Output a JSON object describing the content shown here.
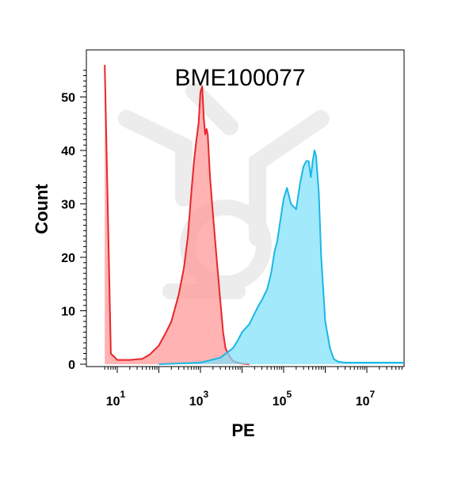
{
  "chart_data": {
    "type": "area",
    "title": "BME100077",
    "xlabel": "PE",
    "ylabel": "Count",
    "xscale": "log",
    "xlim": [
      5,
      1000000000
    ],
    "ylim": [
      0,
      57
    ],
    "x_ticks": [
      {
        "value": 10,
        "base": "10",
        "exp": "1"
      },
      {
        "value": 1000,
        "base": "10",
        "exp": "3"
      },
      {
        "value": 100000,
        "base": "10",
        "exp": "5"
      },
      {
        "value": 10000000,
        "base": "10",
        "exp": "7"
      }
    ],
    "y_ticks": [
      "0",
      "10",
      "20",
      "30",
      "40",
      "50"
    ],
    "y_tick_values": [
      0,
      10,
      20,
      30,
      40,
      50
    ],
    "grid": false,
    "colors": {
      "red_fill": "#ff9a9a",
      "red_line": "#e8262a",
      "blue_fill": "#7ee0fb",
      "blue_line": "#1ab7e6",
      "overlap": "#9eabb8"
    },
    "series": [
      {
        "color": "red",
        "x": [
          5,
          7,
          10,
          20,
          40,
          60,
          100,
          150,
          200,
          300,
          400,
          500,
          600,
          700,
          800,
          900,
          1000,
          1100,
          1200,
          1300,
          1400,
          1500,
          1700,
          2000,
          2500,
          3000,
          3500,
          4000,
          5000,
          6000,
          8000,
          10000,
          15000
        ],
        "y": [
          56,
          2,
          0.8,
          0.8,
          1,
          1.8,
          3.5,
          6,
          8,
          13,
          18,
          24,
          32,
          38,
          42,
          45,
          51,
          52,
          46,
          43,
          44,
          43,
          35,
          28,
          19,
          12,
          6,
          3,
          1.5,
          0.6,
          0.3,
          0.1,
          0
        ]
      },
      {
        "color": "blue",
        "x": [
          100,
          1000,
          3000,
          6000,
          8000,
          10000,
          15000,
          20000,
          25000,
          30000,
          40000,
          50000,
          60000,
          70000,
          80000,
          100000,
          120000,
          150000,
          200000,
          250000,
          300000,
          350000,
          400000,
          450000,
          500000,
          550000,
          600000,
          700000,
          800000,
          1000000,
          1300000,
          1600000,
          2000000,
          3000000,
          1000000000
        ],
        "y": [
          0,
          0.3,
          1.2,
          3,
          4.5,
          6,
          7.5,
          9.5,
          11,
          12,
          14,
          17,
          21,
          23,
          26,
          31,
          33,
          30,
          29,
          34,
          37,
          38,
          38,
          35,
          38,
          40,
          39,
          32,
          20,
          8,
          3,
          1,
          0.5,
          0.3,
          0.3
        ]
      }
    ]
  }
}
